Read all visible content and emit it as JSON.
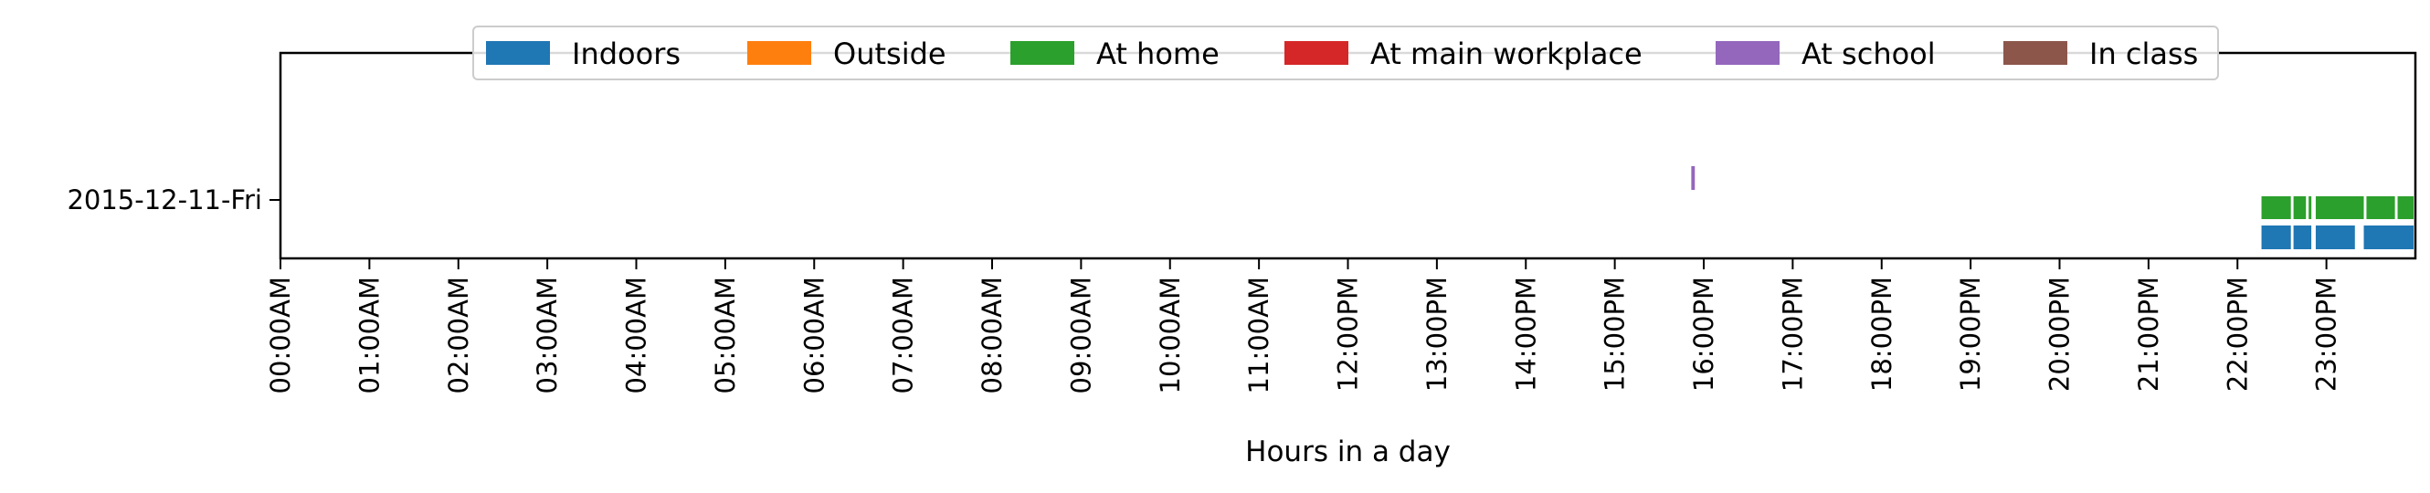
{
  "chart_data": {
    "type": "timeline",
    "title": "",
    "xlabel": "Hours in a day",
    "ylabel": "",
    "xlim": [
      0,
      24
    ],
    "x_tick_labels": [
      "00:00AM",
      "01:00AM",
      "02:00AM",
      "03:00AM",
      "04:00AM",
      "05:00AM",
      "06:00AM",
      "07:00AM",
      "08:00AM",
      "09:00AM",
      "10:00AM",
      "11:00AM",
      "12:00PM",
      "13:00PM",
      "14:00PM",
      "15:00PM",
      "16:00PM",
      "17:00PM",
      "18:00PM",
      "19:00PM",
      "20:00PM",
      "21:00PM",
      "22:00PM",
      "23:00PM"
    ],
    "rows": [
      "2015-12-11-Fri"
    ],
    "legend_position": "top-center",
    "grid": false,
    "series": [
      {
        "name": "Indoors",
        "color": "#1f77b4",
        "intervals": [
          [
            22.27,
            22.6
          ],
          [
            22.63,
            22.83
          ],
          [
            22.88,
            23.32
          ],
          [
            23.42,
            23.98
          ]
        ]
      },
      {
        "name": "Outside",
        "color": "#ff7f0e",
        "intervals": []
      },
      {
        "name": "At home",
        "color": "#2ca02c",
        "intervals": [
          [
            22.27,
            22.6
          ],
          [
            22.63,
            22.77
          ],
          [
            22.8,
            22.83
          ],
          [
            22.88,
            23.42
          ],
          [
            23.45,
            23.77
          ],
          [
            23.8,
            23.98
          ]
        ]
      },
      {
        "name": "At main workplace",
        "color": "#d62728",
        "intervals": []
      },
      {
        "name": "At school",
        "color": "#9467bd",
        "intervals": [
          [
            15.86,
            15.9
          ]
        ]
      },
      {
        "name": "In class",
        "color": "#8c564b",
        "intervals": []
      }
    ]
  }
}
